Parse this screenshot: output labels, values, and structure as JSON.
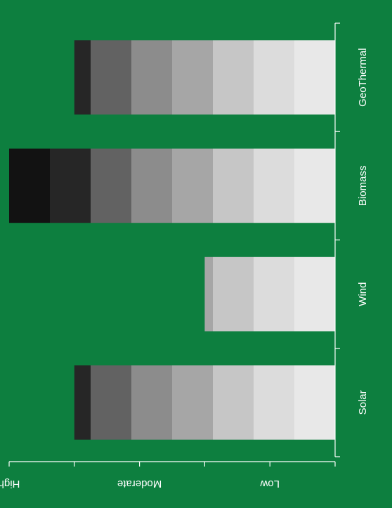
{
  "chart_data": {
    "type": "bar",
    "orientation": "horizontal",
    "categories": [
      "Solar",
      "Wind",
      "Biomass",
      "GeoThermal"
    ],
    "values": [
      4,
      2,
      5,
      4
    ],
    "value_axis": {
      "range": [
        0,
        5
      ],
      "ticks": [
        {
          "value": 0,
          "label": ""
        },
        {
          "value": 1,
          "label": "Low"
        },
        {
          "value": 2,
          "label": ""
        },
        {
          "value": 3,
          "label": "Moderate"
        },
        {
          "value": 4,
          "label": ""
        },
        {
          "value": 5,
          "label": "High"
        }
      ]
    },
    "title": "",
    "xlabel": "",
    "ylabel": "",
    "grid": false,
    "legend": "none",
    "colors": {
      "background": "#0d7f3f",
      "bar_gradient_steps": [
        "#e8e8e8",
        "#dcdcdc",
        "#c6c6c6",
        "#a6a6a6",
        "#8c8c8c",
        "#626262",
        "#262626",
        "#121212"
      ]
    }
  }
}
